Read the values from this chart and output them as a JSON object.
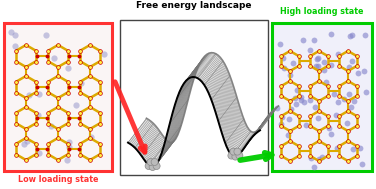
{
  "title": "Free energy landscape",
  "left_label": "Low loading state",
  "right_label": "High loading state",
  "left_border_color": "#ff3333",
  "right_border_color": "#00cc00",
  "left_bg": "#faf0f0",
  "right_bg": "#eeeeff",
  "center_border": "#444444",
  "wireframe_color": "#777777",
  "front_curve_color": "#111111",
  "sphere_color": "#bbbbbb",
  "arrow_red_color": "#ff2222",
  "arrow_green_color": "#00cc00"
}
